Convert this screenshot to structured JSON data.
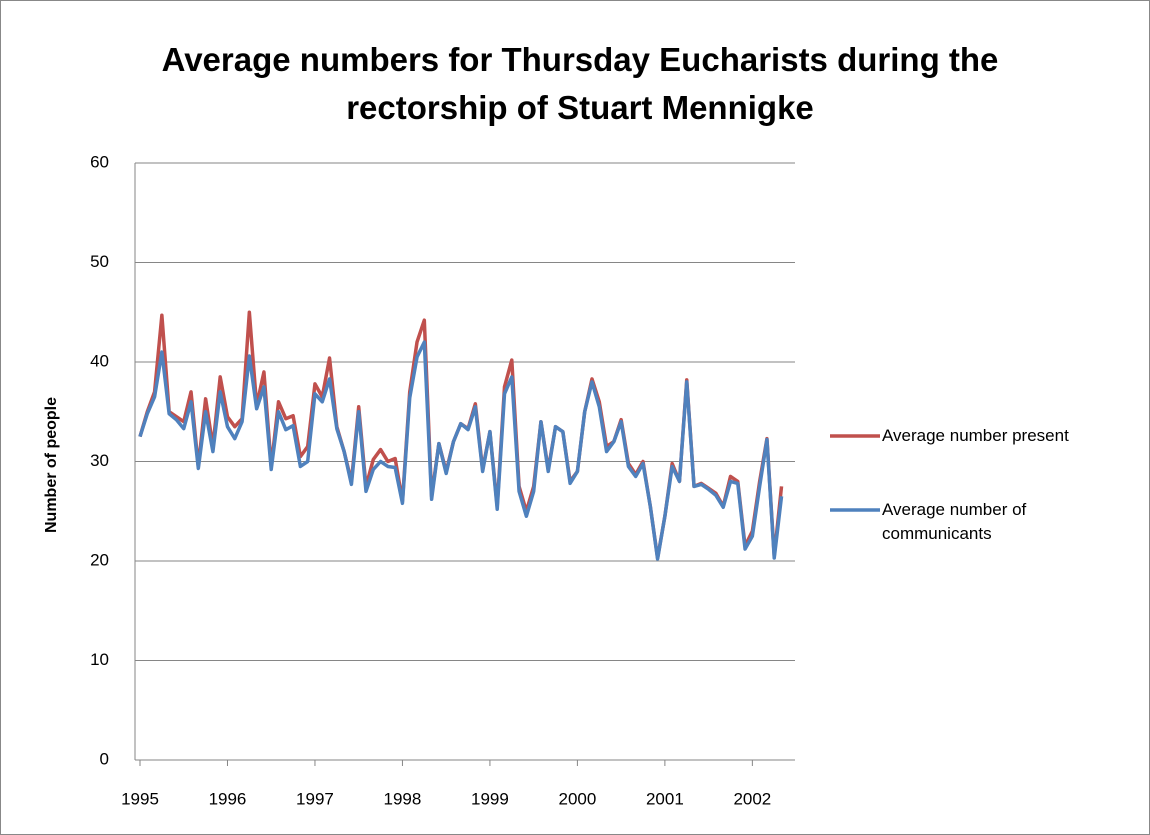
{
  "chart_data": {
    "type": "line",
    "title": "Average numbers for Thursday Eucharists during the rectorship of Stuart Mennigke",
    "ylabel": "Number of people",
    "categories": [
      "1995",
      null,
      null,
      null,
      null,
      null,
      null,
      null,
      null,
      null,
      null,
      null,
      "1996",
      null,
      null,
      null,
      null,
      null,
      null,
      null,
      null,
      null,
      null,
      null,
      "1997",
      null,
      null,
      null,
      null,
      null,
      null,
      null,
      null,
      null,
      null,
      null,
      "1998",
      null,
      null,
      null,
      null,
      null,
      null,
      null,
      null,
      null,
      null,
      null,
      "1999",
      null,
      null,
      null,
      null,
      null,
      null,
      null,
      null,
      null,
      null,
      null,
      "2000",
      null,
      null,
      null,
      null,
      null,
      null,
      null,
      null,
      null,
      null,
      null,
      "2001",
      null,
      null,
      null,
      null,
      null,
      null,
      null,
      null,
      null,
      null,
      null,
      "2002",
      null,
      null,
      null,
      null
    ],
    "series": [
      {
        "name": "Average number present",
        "color": "#c0504d",
        "values": [
          32.5,
          35,
          37,
          44.7,
          35,
          34.5,
          34,
          37,
          29.5,
          36.3,
          31.5,
          38.5,
          34.5,
          33.5,
          34.3,
          45,
          35.6,
          39,
          29.5,
          36,
          34.3,
          34.6,
          30.5,
          31.5,
          37.8,
          36.5,
          40.4,
          33.5,
          31,
          28,
          35.5,
          27.5,
          30.2,
          31.2,
          30,
          30.3,
          26,
          37,
          42,
          44.2,
          26.5,
          31.8,
          29,
          32,
          33.8,
          33.3,
          35.8,
          29.2,
          33,
          25.5,
          37.5,
          40.2,
          27.5,
          25,
          27.5,
          34,
          29.2,
          33.5,
          33,
          28,
          29,
          35,
          38.3,
          36,
          31.5,
          32,
          34.2,
          29.8,
          28.7,
          30,
          25.5,
          20.3,
          24.5,
          29.8,
          28,
          38.2,
          27.5,
          27.8,
          27.3,
          26.8,
          25.5,
          28.5,
          28,
          21.5,
          23,
          28,
          32.3,
          20.5,
          27.5
        ]
      },
      {
        "name": "Average number of communicants",
        "color": "#4f81bd",
        "values": [
          32.5,
          34.8,
          36.5,
          41,
          34.8,
          34.2,
          33.3,
          36,
          29.3,
          35,
          31,
          37,
          33.5,
          32.3,
          34,
          40.6,
          35.3,
          37.5,
          29.2,
          35,
          33.2,
          33.6,
          29.5,
          30,
          36.8,
          36,
          38.3,
          33.3,
          31,
          27.7,
          35,
          27,
          29.2,
          30,
          29.5,
          29.4,
          25.8,
          36.4,
          40.5,
          42,
          26.2,
          31.8,
          28.8,
          32,
          33.8,
          33.2,
          35.5,
          29,
          33,
          25.2,
          36.8,
          38.5,
          27,
          24.5,
          27,
          34,
          29,
          33.5,
          33,
          27.8,
          29,
          35,
          38,
          35.5,
          31,
          32,
          34,
          29.5,
          28.5,
          29.8,
          25.5,
          20.2,
          24.5,
          29.5,
          28,
          38,
          27.5,
          27.7,
          27.2,
          26.6,
          25.4,
          28,
          27.8,
          21.2,
          22.5,
          27.5,
          32.2,
          20.3,
          26.5
        ]
      }
    ],
    "ylim": [
      0,
      60
    ],
    "yticks": [
      0,
      10,
      20,
      30,
      40,
      50,
      60
    ],
    "grid": true
  }
}
